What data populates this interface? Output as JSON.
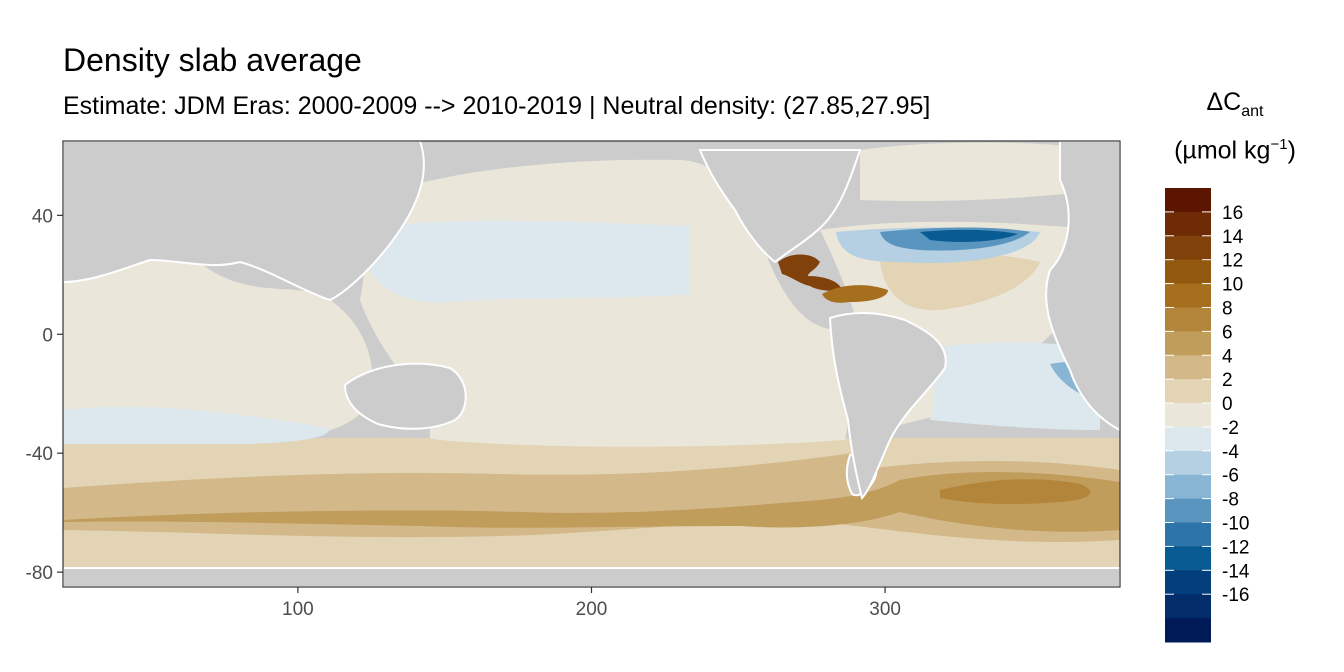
{
  "title": "Density slab average",
  "subtitle": "Estimate: JDM Eras: 2000-2009 --> 2010-2019 | Neutral density: (27.85,27.95]",
  "legend": {
    "symbol": "ΔC",
    "symbol_sub": "ant",
    "unit_main": "(µmol kg",
    "unit_sup": "−1",
    "unit_close": ")",
    "labels": [
      "16",
      "14",
      "12",
      "10",
      "8",
      "6",
      "4",
      "2",
      "0",
      "-2",
      "-4",
      "-6",
      "-8",
      "-10",
      "-12",
      "-14",
      "-16"
    ],
    "colors": [
      "#5c1500",
      "#6e2b05",
      "#80420a",
      "#935a0f",
      "#a66f1e",
      "#b3853b",
      "#c19d5c",
      "#d3b88a",
      "#e2d4b5",
      "#ebe6da",
      "#dce7ee",
      "#b4d0e2",
      "#87b5d3",
      "#5a95c0",
      "#2d74aa",
      "#085b93",
      "#033f7c",
      "#022c6a",
      "#011a58"
    ]
  },
  "map": {
    "x_ticks": [
      100,
      200,
      300
    ],
    "y_ticks": [
      40,
      0,
      -40,
      -80
    ],
    "xlim": [
      20,
      380
    ],
    "ylim": [
      -85,
      65
    ],
    "land_color": "#cccccc",
    "nodata_color": "#ffffff"
  }
}
